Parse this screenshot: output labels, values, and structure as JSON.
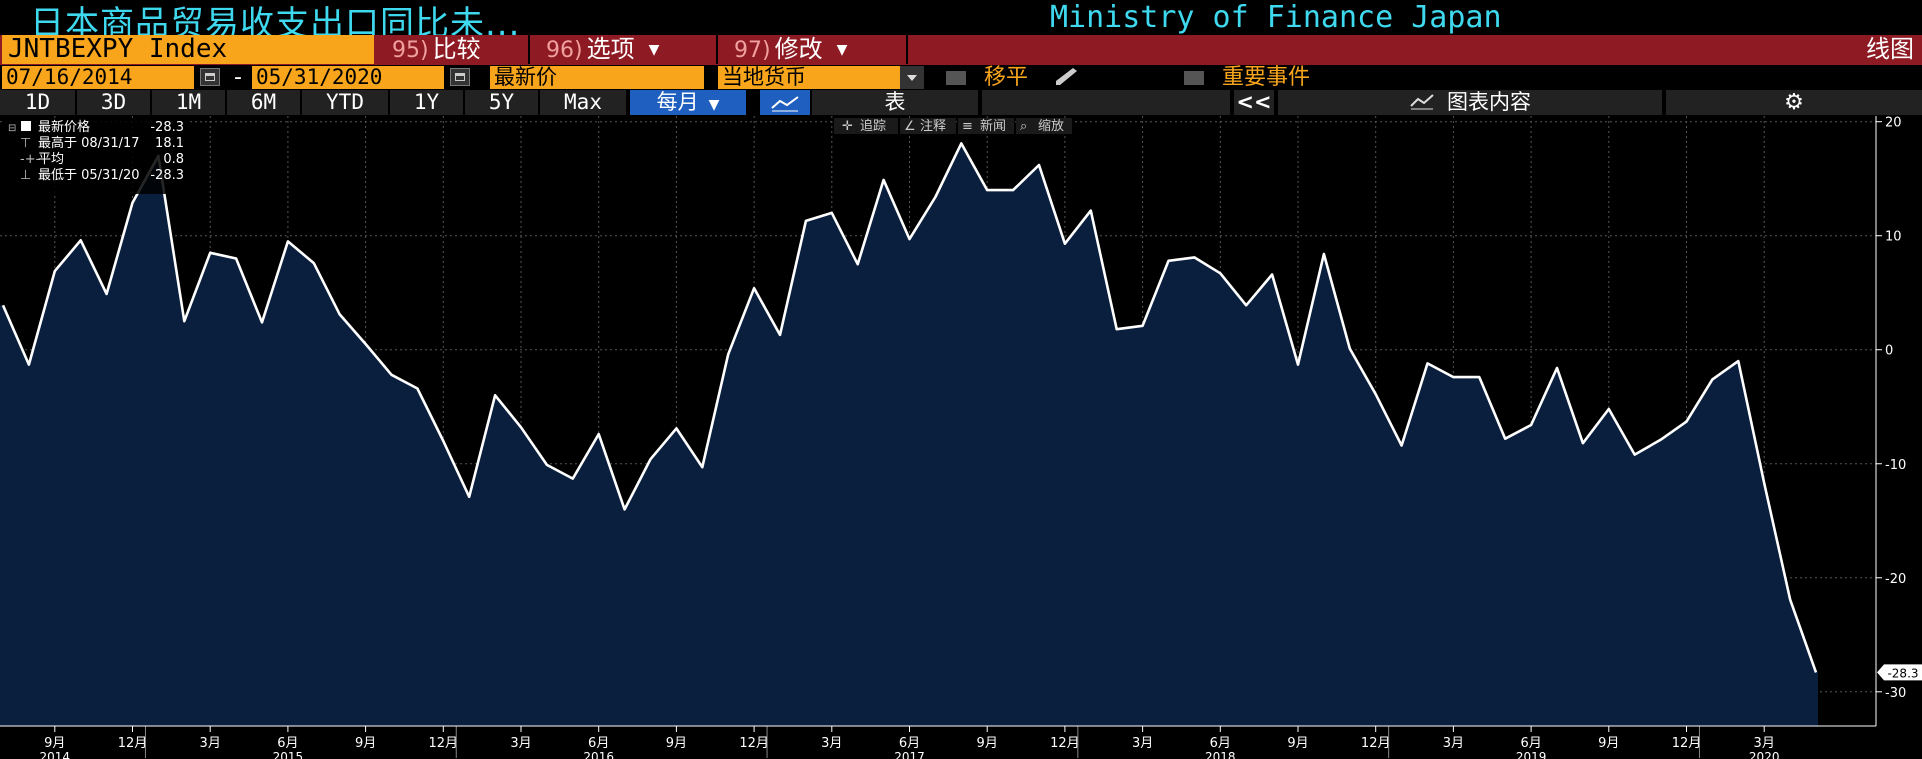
{
  "header": {
    "title": "日本商品贸易收支出口同比未...",
    "source": "Ministry of Finance Japan"
  },
  "commands": {
    "ticker": "JNTBEXPY Index",
    "compare_num": "95)",
    "compare_label": "比较",
    "options_num": "96)",
    "options_label": "选项",
    "edit_num": "97)",
    "edit_label": "修改",
    "chart_label": "线图"
  },
  "controls": {
    "start_date": "07/16/2014",
    "dash": "-",
    "end_date": "05/31/2020",
    "price_type": "最新价",
    "currency": "当地货币",
    "shift_label": "移平",
    "events_label": "重要事件"
  },
  "toolbar": {
    "periods": [
      "1D",
      "3D",
      "1M",
      "6M",
      "YTD",
      "1Y",
      "5Y",
      "Max"
    ],
    "frequency": "每月",
    "table_label": "表",
    "collapse": "<<",
    "chart_content": "图表内容",
    "track": "追踪",
    "annotate": "注释",
    "news": "新闻",
    "zoom": "缩放"
  },
  "legend": {
    "last_label": "最新价格",
    "last_value": "-28.3",
    "high_label": "最高于 08/31/17",
    "high_value": "18.1",
    "avg_label": "平均",
    "avg_value": "0.8",
    "low_label": "最低于 05/31/20",
    "low_value": "-28.3"
  },
  "colors": {
    "line": "#ffffff",
    "area": "#0a1f3d",
    "accent_orange": "#f8a51c",
    "title_cyan": "#3fd9ef",
    "command_red": "#8e1a23"
  },
  "chart_data": {
    "type": "area",
    "start": "2014-07",
    "frequency": "monthly",
    "x": [
      "2014-07",
      "2014-08",
      "2014-09",
      "2014-10",
      "2014-11",
      "2014-12",
      "2015-01",
      "2015-02",
      "2015-03",
      "2015-04",
      "2015-05",
      "2015-06",
      "2015-07",
      "2015-08",
      "2015-09",
      "2015-10",
      "2015-11",
      "2015-12",
      "2016-01",
      "2016-02",
      "2016-03",
      "2016-04",
      "2016-05",
      "2016-06",
      "2016-07",
      "2016-08",
      "2016-09",
      "2016-10",
      "2016-11",
      "2016-12",
      "2017-01",
      "2017-02",
      "2017-03",
      "2017-04",
      "2017-05",
      "2017-06",
      "2017-07",
      "2017-08",
      "2017-09",
      "2017-10",
      "2017-11",
      "2017-12",
      "2018-01",
      "2018-02",
      "2018-03",
      "2018-04",
      "2018-05",
      "2018-06",
      "2018-07",
      "2018-08",
      "2018-09",
      "2018-10",
      "2018-11",
      "2018-12",
      "2019-01",
      "2019-02",
      "2019-03",
      "2019-04",
      "2019-05",
      "2019-06",
      "2019-07",
      "2019-08",
      "2019-09",
      "2019-10",
      "2019-11",
      "2019-12",
      "2020-01",
      "2020-02",
      "2020-03",
      "2020-04",
      "2020-05"
    ],
    "values": [
      3.9,
      -1.3,
      6.9,
      9.6,
      4.9,
      12.9,
      17.0,
      2.5,
      8.5,
      8.0,
      2.4,
      9.5,
      7.6,
      3.1,
      0.5,
      -2.2,
      -3.4,
      -8.0,
      -12.9,
      -4.0,
      -6.8,
      -10.1,
      -11.3,
      -7.4,
      -14.0,
      -9.6,
      -6.9,
      -10.3,
      -0.4,
      5.4,
      1.3,
      11.3,
      12.0,
      7.5,
      14.9,
      9.7,
      13.4,
      18.1,
      14.0,
      14.0,
      16.2,
      9.3,
      12.2,
      1.8,
      2.1,
      7.8,
      8.1,
      6.7,
      3.9,
      6.6,
      -1.3,
      8.4,
      0.1,
      -3.9,
      -8.4,
      -1.2,
      -2.4,
      -2.4,
      -7.8,
      -6.6,
      -1.6,
      -8.2,
      -5.2,
      -9.2,
      -7.9,
      -6.3,
      -2.6,
      -1.0,
      -11.7,
      -21.9,
      -28.3
    ],
    "last_value": -28.3,
    "ylim": [
      -33,
      20.5
    ],
    "yticks": [
      20,
      10,
      0,
      -10,
      -20,
      -30
    ],
    "xticks": [
      {
        "x": "2014-09",
        "label": "9月"
      },
      {
        "x": "2014-12",
        "label": "12月"
      },
      {
        "x": "2015-03",
        "label": "3月"
      },
      {
        "x": "2015-06",
        "label": "6月"
      },
      {
        "x": "2015-09",
        "label": "9月"
      },
      {
        "x": "2015-12",
        "label": "12月"
      },
      {
        "x": "2016-03",
        "label": "3月"
      },
      {
        "x": "2016-06",
        "label": "6月"
      },
      {
        "x": "2016-09",
        "label": "9月"
      },
      {
        "x": "2016-12",
        "label": "12月"
      },
      {
        "x": "2017-03",
        "label": "3月"
      },
      {
        "x": "2017-06",
        "label": "6月"
      },
      {
        "x": "2017-09",
        "label": "9月"
      },
      {
        "x": "2017-12",
        "label": "12月"
      },
      {
        "x": "2018-03",
        "label": "3月"
      },
      {
        "x": "2018-06",
        "label": "6月"
      },
      {
        "x": "2018-09",
        "label": "9月"
      },
      {
        "x": "2018-12",
        "label": "12月"
      },
      {
        "x": "2019-03",
        "label": "3月"
      },
      {
        "x": "2019-06",
        "label": "6月"
      },
      {
        "x": "2019-09",
        "label": "9月"
      },
      {
        "x": "2019-12",
        "label": "12月"
      },
      {
        "x": "2020-03",
        "label": "3月"
      }
    ],
    "years": [
      {
        "x": "2014-09",
        "label": "2014"
      },
      {
        "x": "2015-06",
        "label": "2015"
      },
      {
        "x": "2016-06",
        "label": "2016"
      },
      {
        "x": "2017-06",
        "label": "2017"
      },
      {
        "x": "2018-06",
        "label": "2018"
      },
      {
        "x": "2019-06",
        "label": "2019"
      },
      {
        "x": "2020-03",
        "label": "2020"
      }
    ],
    "grid": true
  }
}
